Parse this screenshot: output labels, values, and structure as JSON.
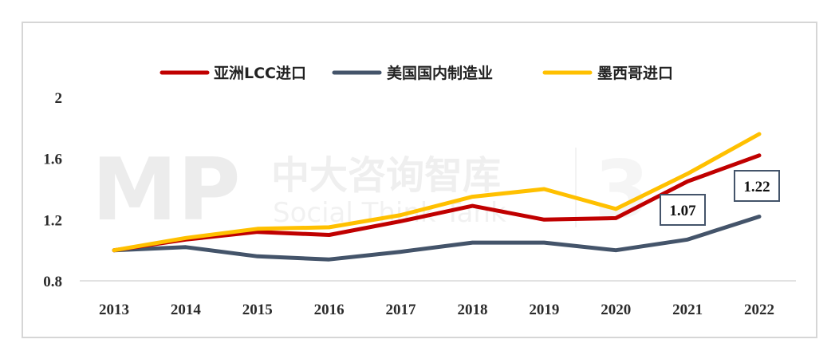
{
  "watermark": {
    "logo": "MP",
    "name": "中大咨询智库",
    "sub": "Social Think Tank"
  },
  "chart_data": {
    "type": "line",
    "x": [
      "2013",
      "2014",
      "2015",
      "2016",
      "2017",
      "2018",
      "2019",
      "2020",
      "2021",
      "2022"
    ],
    "series": [
      {
        "name": "亚洲LCC进口",
        "color": "#c00000",
        "values": [
          1.0,
          1.07,
          1.12,
          1.1,
          1.19,
          1.29,
          1.2,
          1.21,
          1.45,
          1.62
        ]
      },
      {
        "name": "美国国内制造业",
        "color": "#44546a",
        "values": [
          1.0,
          1.02,
          0.96,
          0.94,
          0.99,
          1.05,
          1.05,
          1.0,
          1.07,
          1.22
        ]
      },
      {
        "name": "墨西哥进口",
        "color": "#ffc000",
        "values": [
          1.0,
          1.08,
          1.14,
          1.15,
          1.23,
          1.35,
          1.4,
          1.27,
          1.5,
          1.76
        ]
      }
    ],
    "ylim": [
      0.8,
      2.0
    ],
    "yticks": [
      "0.8",
      "1.2",
      "1.6",
      "2"
    ],
    "ytick_values": [
      0.8,
      1.2,
      1.6,
      2.0
    ],
    "legend_position": "top",
    "grid": false,
    "annotations": [
      {
        "text": "1.07",
        "series": "美国国内制造业",
        "x": "2021"
      },
      {
        "text": "1.22",
        "series": "美国国内制造业",
        "x": "2022"
      }
    ]
  }
}
